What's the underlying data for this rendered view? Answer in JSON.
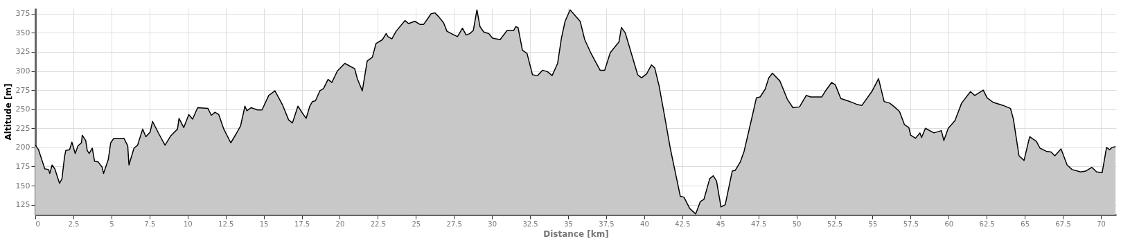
{
  "chart_data": {
    "type": "area",
    "xlabel": "Distance [km]",
    "ylabel": "Altitude [m]",
    "x": [
      0,
      0.21,
      0.62,
      0.87,
      0.95,
      1.1,
      1.28,
      1.59,
      1.75,
      1.92,
      2.0,
      2.25,
      2.4,
      2.62,
      2.8,
      3.03,
      3.08,
      3.31,
      3.41,
      3.54,
      3.74,
      3.89,
      4.13,
      4.39,
      4.48,
      4.79,
      4.95,
      5.16,
      5.82,
      6.07,
      6.15,
      6.48,
      6.72,
      7.05,
      7.26,
      7.54,
      7.7,
      8.11,
      8.52,
      8.89,
      9.34,
      9.44,
      9.75,
      10.08,
      10.33,
      10.66,
      11.34,
      11.56,
      11.8,
      12.05,
      12.38,
      12.84,
      13.2,
      13.48,
      13.77,
      13.9,
      14.18,
      14.59,
      14.89,
      15.33,
      15.74,
      16.23,
      16.64,
      16.89,
      17.25,
      17.54,
      17.79,
      18.03,
      18.2,
      18.4,
      18.69,
      18.93,
      19.23,
      19.48,
      19.84,
      20.33,
      20.98,
      21.15,
      21.48,
      21.8,
      22.14,
      22.38,
      22.8,
      23.05,
      23.16,
      23.42,
      23.7,
      24.28,
      24.52,
      24.93,
      25.26,
      25.51,
      25.76,
      26.0,
      26.25,
      26.5,
      26.82,
      27.04,
      27.32,
      27.73,
      28.06,
      28.3,
      28.55,
      28.77,
      29.01,
      29.21,
      29.46,
      29.79,
      30.03,
      30.53,
      30.99,
      31.43,
      31.55,
      31.71,
      32.0,
      32.3,
      32.66,
      32.99,
      33.32,
      33.65,
      33.95,
      34.31,
      34.56,
      34.8,
      35.13,
      35.79,
      36.09,
      36.53,
      37.1,
      37.4,
      37.77,
      38.34,
      38.5,
      38.75,
      39.57,
      39.82,
      40.15,
      40.48,
      40.69,
      40.97,
      41.3,
      41.71,
      42.37,
      42.61,
      42.99,
      43.38,
      43.68,
      43.92,
      44.3,
      44.53,
      44.75,
      45.04,
      45.32,
      45.78,
      45.98,
      46.31,
      46.56,
      47.05,
      47.37,
      47.61,
      47.94,
      48.18,
      48.42,
      48.91,
      49.4,
      49.77,
      50.2,
      50.64,
      50.93,
      51.66,
      51.91,
      52.31,
      52.55,
      52.91,
      53.36,
      53.77,
      54.01,
      54.3,
      54.98,
      55.39,
      55.76,
      56.12,
      56.44,
      56.77,
      57.09,
      57.38,
      57.5,
      57.82,
      58.11,
      58.22,
      58.47,
      59.03,
      59.52,
      59.68,
      59.97,
      60.41,
      60.85,
      61.43,
      61.71,
      62.27,
      62.52,
      62.92,
      63.57,
      64.06,
      64.25,
      64.62,
      64.95,
      65.32,
      65.76,
      66.0,
      66.41,
      66.73,
      66.97,
      67.38,
      67.78,
      68.11,
      68.67,
      69.0,
      69.4,
      69.72,
      70.08,
      70.37,
      70.57,
      70.73,
      70.96
    ],
    "series": [
      {
        "color": "#c8c8c8",
        "values": [
          203,
          197,
          172,
          171,
          166,
          177,
          172,
          153,
          159,
          188,
          196,
          197,
          207,
          192,
          202,
          206,
          216,
          209,
          196,
          192,
          199,
          182,
          181,
          174,
          166,
          184,
          206,
          212,
          212,
          202,
          177,
          199,
          203,
          224,
          214,
          220,
          234,
          218,
          203,
          215,
          224,
          238,
          226,
          243,
          237,
          252,
          251,
          242,
          246,
          243,
          224,
          206,
          218,
          228,
          254,
          248,
          252,
          249,
          249,
          268,
          274,
          256,
          236,
          232,
          254,
          245,
          238,
          254,
          260,
          261,
          274,
          277,
          289,
          285,
          300,
          310,
          303,
          290,
          274,
          313,
          318,
          336,
          341,
          349,
          345,
          342,
          352,
          366,
          362,
          365,
          361,
          361,
          368,
          375,
          376,
          371,
          363,
          352,
          349,
          345,
          356,
          347,
          349,
          353,
          380,
          358,
          351,
          349,
          343,
          341,
          353,
          353,
          358,
          357,
          327,
          323,
          295,
          294,
          301,
          299,
          294,
          310,
          343,
          365,
          380,
          365,
          341,
          322,
          301,
          301,
          324,
          338,
          357,
          350,
          295,
          291,
          296,
          308,
          304,
          281,
          245,
          199,
          136,
          135,
          120,
          113,
          129,
          132,
          159,
          163,
          156,
          122,
          125,
          169,
          170,
          181,
          195,
          237,
          265,
          266,
          276,
          291,
          297,
          287,
          263,
          252,
          253,
          268,
          266,
          266,
          274,
          285,
          282,
          264,
          261,
          258,
          256,
          255,
          274,
          290,
          260,
          258,
          253,
          247,
          230,
          226,
          216,
          212,
          219,
          213,
          225,
          219,
          222,
          209,
          225,
          235,
          258,
          273,
          268,
          275,
          265,
          259,
          255,
          251,
          237,
          189,
          183,
          214,
          208,
          199,
          195,
          194,
          189,
          198,
          177,
          171,
          168,
          169,
          174,
          168,
          167,
          200,
          197,
          200,
          201
        ]
      }
    ],
    "xlim": [
      0,
      71
    ],
    "ylim": [
      112,
      382
    ],
    "xticks": [
      0,
      2.5,
      5,
      7.5,
      10,
      12.5,
      15,
      17.5,
      20,
      22.5,
      25,
      27.5,
      30,
      32.5,
      35,
      37.5,
      40,
      42.5,
      45,
      47.5,
      50,
      52.5,
      55,
      57.5,
      60,
      62.5,
      65,
      67.5,
      70
    ],
    "yticks": [
      125,
      150,
      175,
      200,
      225,
      250,
      275,
      300,
      325,
      350,
      375
    ],
    "grid": true
  }
}
